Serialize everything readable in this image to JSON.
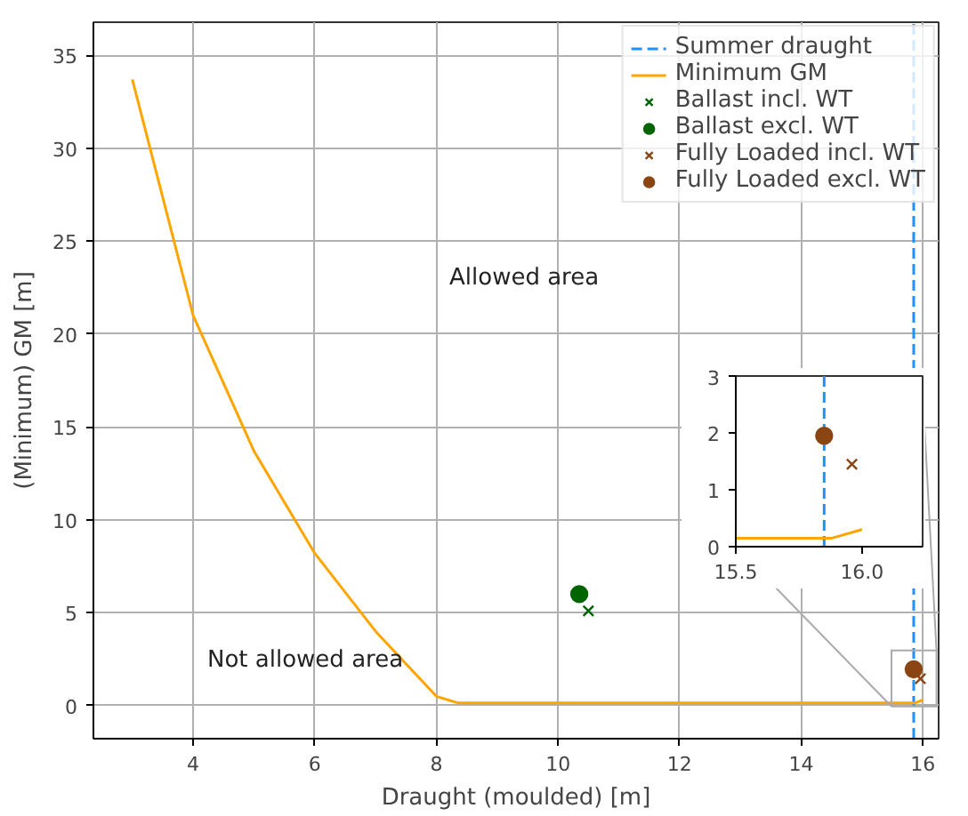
{
  "chart_data": [
    {
      "type": "line",
      "xlabel": "Draught (moulded) [m]",
      "ylabel": "(Minimum) GM [m]",
      "xlim": [
        2.36,
        16.26
      ],
      "ylim": [
        -1.78,
        36.78
      ],
      "xticks": [
        4,
        6,
        8,
        10,
        12,
        14,
        16
      ],
      "yticks": [
        0,
        5,
        10,
        15,
        20,
        25,
        30,
        35
      ],
      "grid": true,
      "legend": "top right",
      "annotations": [
        "Allowed area",
        "Not allowed area"
      ],
      "ref_lines": [
        {
          "axis": "x",
          "value": 15.85,
          "label": "Summer draught",
          "color": "#1e90ff",
          "line_style": "dashed"
        }
      ],
      "series": [
        {
          "name": "Minimum GM",
          "color": "#ffa500",
          "x": [
            3,
            4,
            5,
            6,
            7,
            8,
            8.35,
            15.88,
            16.0
          ],
          "values": [
            33.7,
            21,
            13.7,
            8.2,
            4,
            0.5,
            0.15,
            0.15,
            0.3
          ]
        },
        {
          "name": "Ballast incl. WT",
          "type": "scatter",
          "marker": "cross",
          "color": "#006400",
          "x": [
            10.5
          ],
          "values": [
            5.1
          ]
        },
        {
          "name": "Ballast excl. WT",
          "type": "scatter",
          "marker": "circle",
          "color": "#006400",
          "x": [
            10.35
          ],
          "values": [
            6.0
          ]
        },
        {
          "name": "Fully Loaded incl. WT",
          "type": "scatter",
          "marker": "cross",
          "color": "#8b4513",
          "x": [
            15.96
          ],
          "values": [
            1.45
          ]
        },
        {
          "name": "Fully Loaded excl. WT",
          "type": "scatter",
          "marker": "circle",
          "color": "#8b4513",
          "x": [
            15.85
          ],
          "values": [
            1.95
          ]
        }
      ]
    },
    {
      "type": "line",
      "xlim": [
        15.5,
        16.24
      ],
      "ylim": [
        0,
        3
      ],
      "xticks": [
        15.5,
        {
          "value": 16,
          "label": "16.0"
        }
      ],
      "yticks": [
        0,
        1,
        2,
        3
      ],
      "ref_lines": [
        {
          "axis": "x",
          "value": 15.85,
          "color": "#1e90ff",
          "line_style": "dashed"
        }
      ],
      "series": [
        {
          "color": "#ffa500",
          "x": [
            15.5,
            15.88,
            16.0
          ],
          "values": [
            0.15,
            0.15,
            0.3
          ]
        },
        {
          "type": "scatter",
          "marker": "cross",
          "color": "#8b4513",
          "x": [
            15.96
          ],
          "values": [
            1.45
          ]
        },
        {
          "type": "scatter",
          "marker": "circle",
          "color": "#8b4513",
          "x": [
            15.85
          ],
          "values": [
            1.95
          ]
        }
      ]
    }
  ]
}
